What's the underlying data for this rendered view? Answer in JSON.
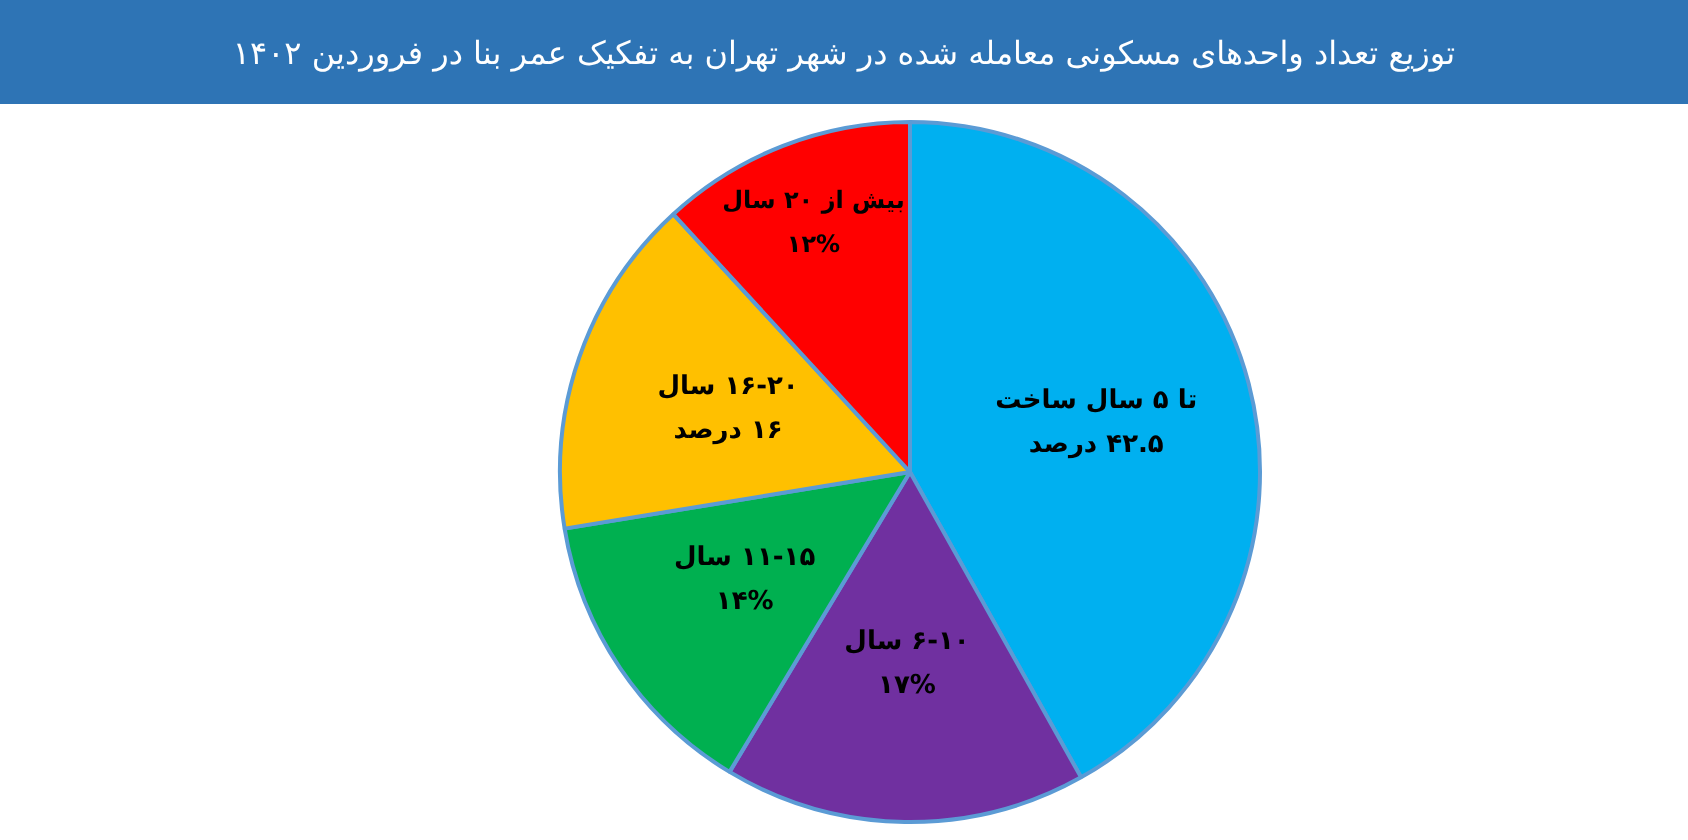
{
  "chart_data": {
    "type": "pie",
    "title": "توزیع تعداد واحدهای مسکونی معامله شده در شهر تهران به تفکیک عمر بنا در فروردین ۱۴۰۲",
    "categories": [
      "تا ۵ سال ساخت",
      "۶-۱۰ سال",
      "۱۱-۱۵ سال",
      "۱۶-۲۰ سال",
      "بیش از ۲۰ سال"
    ],
    "values": [
      42.5,
      17,
      14,
      16,
      12
    ],
    "value_labels": [
      "۴۲.۵ درصد",
      "۱۷%",
      "۱۴%",
      "۱۶ درصد",
      "۱۲%"
    ],
    "colors": [
      "#00b0f0",
      "#7030a0",
      "#00b050",
      "#ffc000",
      "#ff0000"
    ],
    "legend": false
  }
}
